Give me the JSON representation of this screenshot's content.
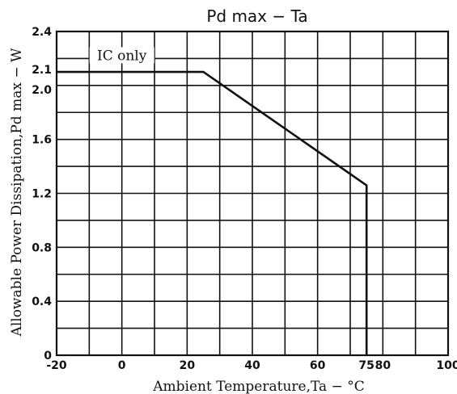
{
  "chart_data": {
    "type": "line",
    "title": "Pd max − Ta",
    "xlabel": "Ambient Temperature,Ta − °C",
    "ylabel": "Allowable Power Dissipation,Pd max − W",
    "xlim": [
      -20,
      100
    ],
    "ylim": [
      0,
      2.4
    ],
    "x_ticks": [
      {
        "value": -20,
        "label": "-20"
      },
      {
        "value": 0,
        "label": "0"
      },
      {
        "value": 20,
        "label": "20"
      },
      {
        "value": 40,
        "label": "40"
      },
      {
        "value": 60,
        "label": "60"
      },
      {
        "value": 75,
        "label": "75"
      },
      {
        "value": 80,
        "label": "80"
      },
      {
        "value": 100,
        "label": "100"
      }
    ],
    "y_ticks": [
      {
        "value": 0,
        "label": "0"
      },
      {
        "value": 0.4,
        "label": "0.4"
      },
      {
        "value": 0.8,
        "label": "0.8"
      },
      {
        "value": 1.2,
        "label": "1.2"
      },
      {
        "value": 1.6,
        "label": "1.6"
      },
      {
        "value": 2.0,
        "label": "2.0"
      },
      {
        "value": 2.1,
        "label": "2.1"
      },
      {
        "value": 2.4,
        "label": "2.4"
      }
    ],
    "grid_x": [
      -10,
      0,
      10,
      20,
      30,
      40,
      50,
      60,
      70,
      80,
      90
    ],
    "grid_y": [
      0.2,
      0.4,
      0.6,
      0.8,
      1.0,
      1.2,
      1.4,
      1.6,
      1.8,
      2.0,
      2.2
    ],
    "grid": true,
    "series": [
      {
        "name": "IC only",
        "x": [
          -20,
          25,
          75,
          75
        ],
        "y": [
          2.1,
          2.1,
          1.26,
          0
        ]
      }
    ],
    "annotations": [
      {
        "text": "IC only",
        "x": 0,
        "y": 2.2
      }
    ]
  }
}
